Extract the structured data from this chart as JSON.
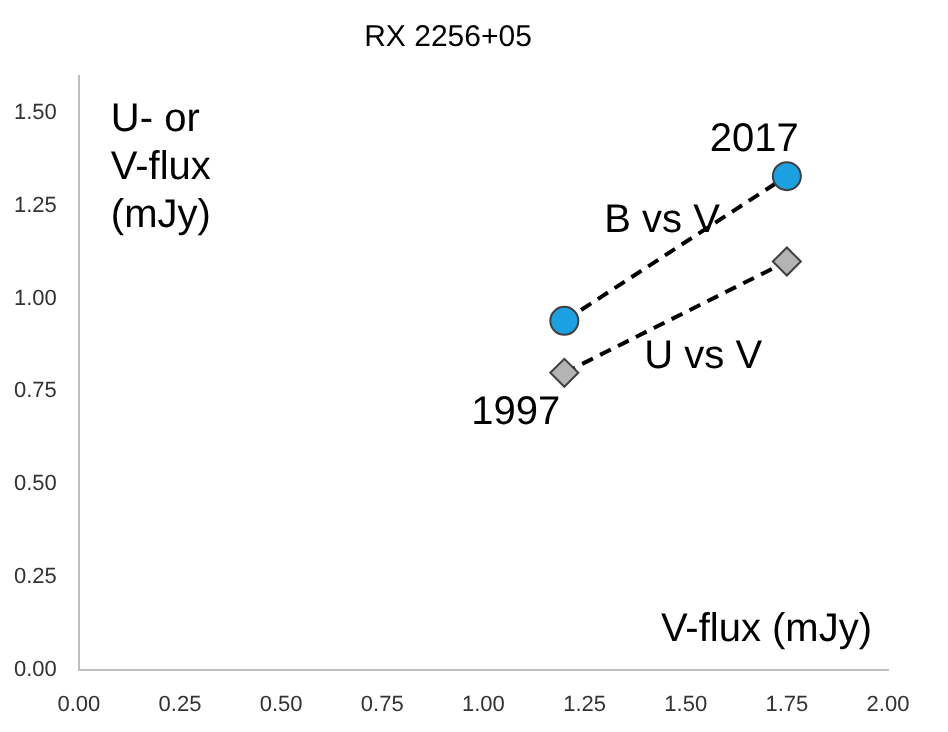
{
  "chart_data": {
    "type": "line",
    "title": "RX 2256+05",
    "xlabel": "V-flux (mJy)",
    "ylabel": "U- or V-flux (mJy)",
    "series": [
      {
        "name": "B vs V",
        "color": "#1ba1e2",
        "values": [
          0.94,
          1.33
        ],
        "marker": "circle"
      },
      {
        "name": "U vs V",
        "color": "#b4b4b4",
        "values": [
          0.8,
          1.1
        ],
        "marker": "diamond"
      }
    ],
    "x": [
      1.2,
      1.75
    ],
    "line_style": "dashed",
    "grid": false,
    "legend": false,
    "xlim": [
      0,
      2
    ],
    "xticks": [
      {
        "value": 0,
        "label": "0.00"
      },
      {
        "value": 0.25,
        "label": "0.25"
      },
      {
        "value": 0.5,
        "label": "0.50"
      },
      {
        "value": 0.75,
        "label": "0.75"
      },
      {
        "value": 1,
        "label": "1.00"
      },
      {
        "value": 1.25,
        "label": "1.25"
      },
      {
        "value": 1.5,
        "label": "1.50"
      },
      {
        "value": 1.75,
        "label": "1.75"
      },
      {
        "value": 2,
        "label": "2.00"
      }
    ],
    "ylim": [
      0,
      1.6
    ],
    "yticks": [
      {
        "value": 0,
        "label": "0.00"
      },
      {
        "value": 0.25,
        "label": "0.25"
      },
      {
        "value": 0.5,
        "label": "0.50"
      },
      {
        "value": 0.75,
        "label": "0.75"
      },
      {
        "value": 1,
        "label": "1.00"
      },
      {
        "value": 1.25,
        "label": "1.25"
      },
      {
        "value": 1.5,
        "label": "1.50"
      }
    ],
    "annotations": [
      {
        "text": "2017",
        "x": 1.75,
        "y": 1.33
      },
      {
        "text": "1997",
        "x": 1.2,
        "y": 0.8
      }
    ]
  }
}
